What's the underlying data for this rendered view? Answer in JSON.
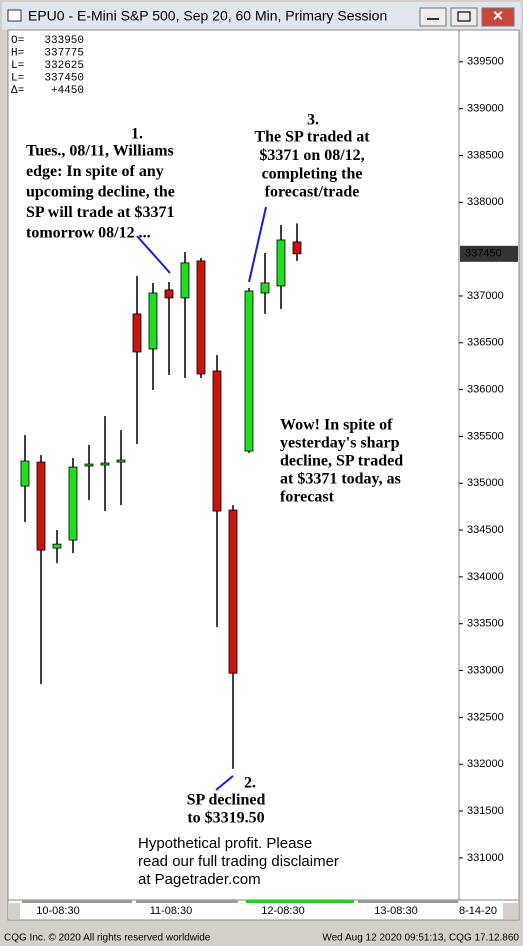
{
  "window_title": "EPU0 - E-Mini S&P 500, Sep 20, 60 Min, Primary Session",
  "chart_data": {
    "type": "candlestick",
    "categories": [
      null,
      null,
      null,
      null,
      null,
      null,
      null,
      null,
      null,
      null,
      null,
      null,
      null,
      null,
      null,
      null,
      null,
      null
    ],
    "open": [
      334970,
      335226,
      334308,
      334393,
      335184,
      335205,
      335226,
      336808,
      336434,
      337064,
      336979,
      337374,
      336199,
      334714,
      335344,
      337032,
      337107,
      337577
    ],
    "high": [
      335515,
      335301,
      334500,
      335269,
      335408,
      335718,
      335568,
      337214,
      337139,
      337150,
      337470,
      337406,
      336370,
      334767,
      337085,
      337459,
      337759,
      337775
    ],
    "low": [
      334585,
      332855,
      334147,
      334254,
      334820,
      334703,
      334767,
      335419,
      335996,
      336156,
      336124,
      336124,
      333464,
      331950,
      335323,
      336808,
      336861,
      337374
    ],
    "close": [
      335237,
      334286,
      334350,
      335173,
      335205,
      335216,
      335248,
      336402,
      337032,
      336979,
      337353,
      336167,
      334703,
      332972,
      337053,
      337139,
      337598,
      337450
    ],
    "up_color": "#22dd22",
    "down_color": "#cc1111",
    "ylim": [
      330550,
      339840
    ],
    "yticks": [
      331000,
      331500,
      332000,
      332500,
      333000,
      333500,
      334000,
      334500,
      335000,
      335500,
      336000,
      336500,
      337000,
      338000,
      338500,
      339000,
      339500
    ],
    "last_price": 337450,
    "session_labels": [
      "10-08:30",
      "11-08:30",
      "12-08:30",
      "13-08:30",
      "8-14-20"
    ],
    "readout": [
      {
        "label": "O=",
        "value": 333950
      },
      {
        "label": "H=",
        "value": 337775
      },
      {
        "label": "L=",
        "value": 332625
      },
      {
        "label": "L=",
        "value": 337450
      },
      {
        "label": "Δ=",
        "value": {
          "value": 4450,
          "label": "+4450"
        }
      }
    ],
    "annotations": [
      {
        "number": "1.",
        "lines": [
          "Tues., 08/11, Williams",
          "edge: In spite of any",
          "upcoming decline, the",
          "SP will trade at $3371",
          "tomorrow 08/12 ..."
        ]
      },
      {
        "number": "2.",
        "lines": [
          "SP declined",
          "to $3319.50"
        ]
      },
      {
        "number": "3.",
        "lines": [
          "The SP traded at",
          "$3371 on 08/12,",
          "completing the",
          "forecast/trade"
        ]
      }
    ],
    "highlight": {
      "lines": [
        "Wow! In spite of",
        "yesterday's sharp",
        "decline, SP traded",
        "at $3371 today, as",
        "forecast"
      ],
      "color": "#1a1add"
    },
    "disclaimer": [
      "Hypothetical profit.  Please",
      "read our full trading disclaimer",
      "at Pagetrader.com"
    ]
  },
  "status_bar": {
    "left": "CQG Inc. © 2020 All rights reserved worldwide",
    "right": "Wed Aug 12 2020 09:51:13, CQG 17.12.860"
  }
}
